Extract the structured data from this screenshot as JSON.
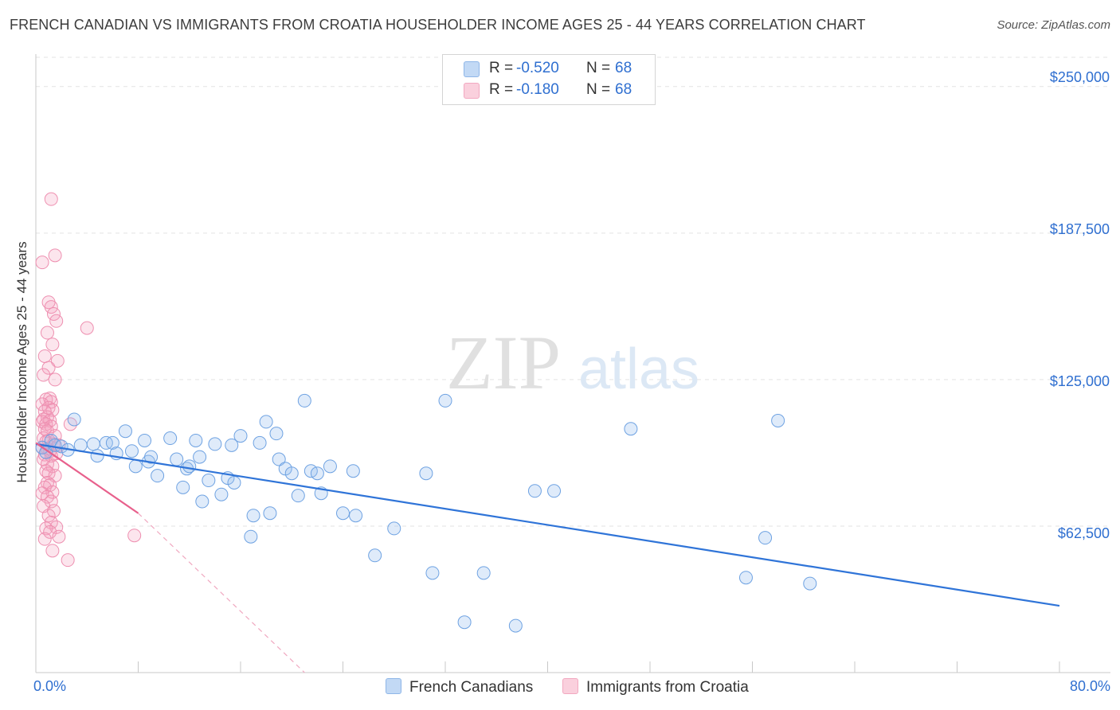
{
  "title": "FRENCH CANADIAN VS IMMIGRANTS FROM CROATIA HOUSEHOLDER INCOME AGES 25 - 44 YEARS CORRELATION CHART",
  "source": "Source: ZipAtlas.com",
  "watermark": {
    "zip": "ZIP",
    "atlas": "atlas"
  },
  "stats": [
    {
      "label": "R =",
      "r": "-0.520",
      "n_label": "N =",
      "n": "68",
      "color": "#a8c8f0"
    },
    {
      "label": "R =",
      "r": "-0.180",
      "n_label": "N =",
      "n": "68",
      "color": "#f4b8cc"
    }
  ],
  "legend": [
    {
      "label": "French Canadians",
      "color": "#a8c8f0"
    },
    {
      "label": "Immigrants from Croatia",
      "color": "#f4b8cc"
    }
  ],
  "chart_data": {
    "type": "scatter",
    "title": "FRENCH CANADIAN VS IMMIGRANTS FROM CROATIA HOUSEHOLDER INCOME AGES 25 - 44 YEARS CORRELATION CHART",
    "xlabel": "",
    "ylabel": "Householder Income Ages 25 - 44 years",
    "xlim": [
      0,
      80
    ],
    "ylim": [
      0,
      262500
    ],
    "x_tick_labels": [
      "0.0%",
      "80.0%"
    ],
    "y_ticks": [
      62500,
      125000,
      187500,
      250000
    ],
    "y_tick_labels": [
      "$62,500",
      "$125,000",
      "$187,500",
      "$250,000"
    ],
    "series": [
      {
        "name": "French Canadians",
        "color": "#7aaee8",
        "trend": {
          "x": [
            0,
            80
          ],
          "y": [
            97500,
            28500
          ]
        },
        "points": [
          [
            0.5,
            96000
          ],
          [
            0.8,
            94000
          ],
          [
            1.2,
            99000
          ],
          [
            1.5,
            97000
          ],
          [
            2.0,
            96500
          ],
          [
            2.5,
            95000
          ],
          [
            3.0,
            108000
          ],
          [
            3.5,
            97000
          ],
          [
            4.5,
            97500
          ],
          [
            4.8,
            92500
          ],
          [
            5.5,
            98000
          ],
          [
            6.0,
            98000
          ],
          [
            6.3,
            93500
          ],
          [
            7.0,
            103000
          ],
          [
            7.5,
            94500
          ],
          [
            7.8,
            88000
          ],
          [
            8.5,
            99000
          ],
          [
            8.8,
            90000
          ],
          [
            9.0,
            92000
          ],
          [
            9.5,
            84000
          ],
          [
            10.5,
            100000
          ],
          [
            11.0,
            91000
          ],
          [
            11.5,
            79000
          ],
          [
            11.8,
            87000
          ],
          [
            12.0,
            88000
          ],
          [
            12.5,
            99000
          ],
          [
            12.8,
            92000
          ],
          [
            13.0,
            73000
          ],
          [
            13.5,
            82000
          ],
          [
            14.0,
            97500
          ],
          [
            14.5,
            76000
          ],
          [
            15.0,
            83000
          ],
          [
            15.3,
            97000
          ],
          [
            15.5,
            81000
          ],
          [
            16.0,
            101000
          ],
          [
            16.8,
            58000
          ],
          [
            17.0,
            67000
          ],
          [
            17.5,
            98000
          ],
          [
            18.0,
            107000
          ],
          [
            18.3,
            68000
          ],
          [
            18.8,
            102000
          ],
          [
            19.0,
            91000
          ],
          [
            19.5,
            87000
          ],
          [
            20.0,
            85000
          ],
          [
            20.5,
            75500
          ],
          [
            21.0,
            116000
          ],
          [
            21.5,
            86000
          ],
          [
            22.0,
            85000
          ],
          [
            22.3,
            76500
          ],
          [
            23.0,
            88000
          ],
          [
            24.0,
            68000
          ],
          [
            24.8,
            86000
          ],
          [
            25.0,
            67000
          ],
          [
            26.5,
            50000
          ],
          [
            28.0,
            61500
          ],
          [
            30.5,
            85000
          ],
          [
            31.0,
            42500
          ],
          [
            32.0,
            116000
          ],
          [
            33.5,
            21500
          ],
          [
            35.0,
            42500
          ],
          [
            37.5,
            20000
          ],
          [
            39.0,
            77500
          ],
          [
            40.5,
            77500
          ],
          [
            46.5,
            104000
          ],
          [
            55.5,
            40500
          ],
          [
            57.0,
            57500
          ],
          [
            58.0,
            107500
          ],
          [
            60.5,
            38000
          ]
        ]
      },
      {
        "name": "Immigrants from Croatia",
        "color": "#f08cac",
        "trend_solid": {
          "x": [
            0,
            8.0
          ],
          "y": [
            98000,
            68000
          ]
        },
        "trend_dashed": {
          "x": [
            8.0,
            21.0
          ],
          "y": [
            68000,
            0
          ]
        },
        "points": [
          [
            1.2,
            202000
          ],
          [
            1.5,
            178000
          ],
          [
            0.5,
            175000
          ],
          [
            4.0,
            147000
          ],
          [
            1.0,
            158000
          ],
          [
            1.2,
            156000
          ],
          [
            1.4,
            153000
          ],
          [
            1.6,
            150000
          ],
          [
            0.9,
            145000
          ],
          [
            1.3,
            140000
          ],
          [
            0.7,
            135000
          ],
          [
            1.7,
            133000
          ],
          [
            1.0,
            130000
          ],
          [
            0.6,
            127000
          ],
          [
            1.5,
            125000
          ],
          [
            1.1,
            117000
          ],
          [
            0.8,
            116500
          ],
          [
            1.2,
            115500
          ],
          [
            0.5,
            114500
          ],
          [
            1.0,
            113000
          ],
          [
            1.3,
            112000
          ],
          [
            0.7,
            111500
          ],
          [
            0.9,
            109000
          ],
          [
            0.6,
            108000
          ],
          [
            1.1,
            107500
          ],
          [
            0.5,
            107000
          ],
          [
            0.8,
            106000
          ],
          [
            1.2,
            105000
          ],
          [
            0.7,
            104000
          ],
          [
            0.9,
            103000
          ],
          [
            2.7,
            106000
          ],
          [
            1.5,
            101000
          ],
          [
            0.6,
            100000
          ],
          [
            1.0,
            99000
          ],
          [
            0.8,
            98500
          ],
          [
            1.4,
            97500
          ],
          [
            1.8,
            97000
          ],
          [
            0.5,
            96000
          ],
          [
            0.9,
            95500
          ],
          [
            1.1,
            94500
          ],
          [
            1.6,
            93500
          ],
          [
            0.7,
            93000
          ],
          [
            1.2,
            92500
          ],
          [
            0.6,
            91000
          ],
          [
            0.9,
            89000
          ],
          [
            1.3,
            88000
          ],
          [
            0.8,
            86000
          ],
          [
            1.0,
            85000
          ],
          [
            1.5,
            84000
          ],
          [
            0.9,
            81000
          ],
          [
            1.1,
            80000
          ],
          [
            0.7,
            79000
          ],
          [
            1.3,
            77000
          ],
          [
            0.5,
            76500
          ],
          [
            0.9,
            75000
          ],
          [
            1.2,
            73000
          ],
          [
            0.6,
            71000
          ],
          [
            1.4,
            69000
          ],
          [
            1.0,
            67000
          ],
          [
            1.2,
            64000
          ],
          [
            1.6,
            62000
          ],
          [
            0.8,
            61500
          ],
          [
            1.1,
            60000
          ],
          [
            1.8,
            58000
          ],
          [
            0.7,
            57000
          ],
          [
            1.3,
            52000
          ],
          [
            2.5,
            48000
          ],
          [
            7.7,
            58500
          ]
        ]
      }
    ]
  }
}
